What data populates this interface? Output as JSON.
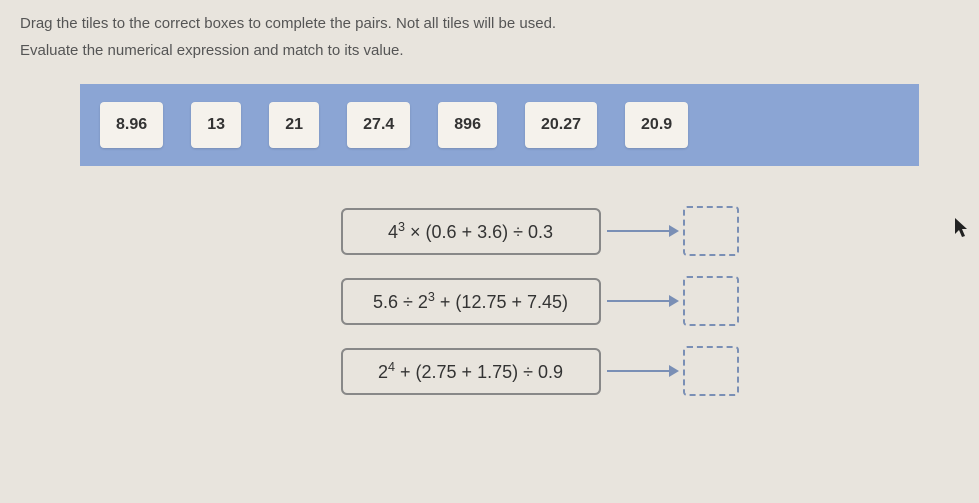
{
  "instructions": {
    "line1": "Drag the tiles to the correct boxes to complete the pairs. Not all tiles will be used.",
    "line2": "Evaluate the numerical expression and match to its value."
  },
  "tiles": {
    "items": [
      "8.96",
      "13",
      "21",
      "27.4",
      "896",
      "20.27",
      "20.9"
    ]
  },
  "expressions": {
    "items": [
      {
        "html": "4<sup>3</sup> × (0.6 + 3.6) ÷ 0.3"
      },
      {
        "html": "5.6 ÷ 2<sup>3</sup> + (12.75 + 7.45)"
      },
      {
        "html": "2<sup>4</sup> + (2.75 + 1.75) ÷ 0.9"
      }
    ]
  },
  "colors": {
    "tile_bar_bg": "#8ba5d4",
    "tile_bg": "#f5f2ec",
    "page_bg": "#e8e4dd",
    "drop_border": "#7a8fb5",
    "arrow_color": "#7a8fb5",
    "expr_border": "#888"
  }
}
